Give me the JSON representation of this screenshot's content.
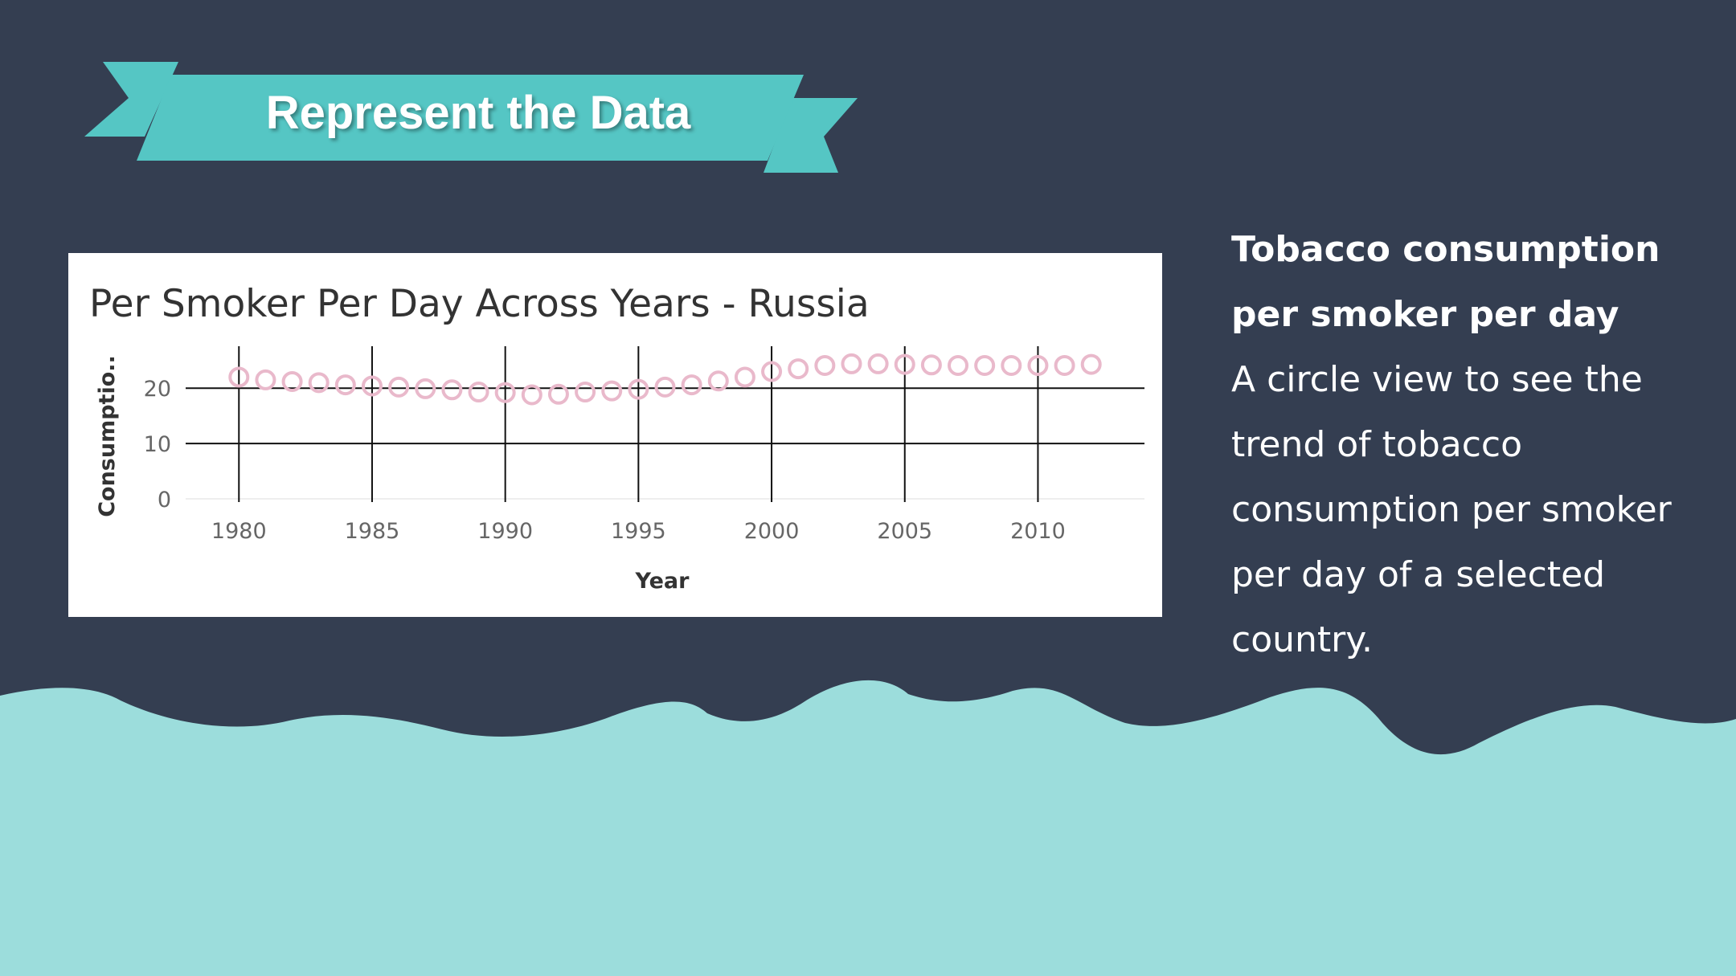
{
  "banner": {
    "title": "Represent the Data"
  },
  "colors": {
    "background": "#343e51",
    "accent": "#55c6c4",
    "wave": "#9cdddc",
    "marker": "#e9b9cb",
    "card": "#ffffff"
  },
  "side_panel": {
    "heading": "Tobacco consumption per smoker per day",
    "body": "A circle view to see the trend of tobacco consumption per smoker per day of a selected country."
  },
  "chart_data": {
    "type": "scatter",
    "title": "Per Smoker Per Day Across Years - Russia",
    "xlabel": "Year",
    "ylabel": "Consumptio..",
    "xlim": [
      1978,
      2014
    ],
    "ylim": [
      0,
      27
    ],
    "xticks": [
      1980,
      1985,
      1990,
      1995,
      2000,
      2005,
      2010
    ],
    "yticks": [
      0,
      10,
      20
    ],
    "grid": true,
    "marker": "open-circle",
    "x": [
      1980,
      1981,
      1982,
      1983,
      1984,
      1985,
      1986,
      1987,
      1988,
      1989,
      1990,
      1991,
      1992,
      1993,
      1994,
      1995,
      1996,
      1997,
      1998,
      1999,
      2000,
      2001,
      2002,
      2003,
      2004,
      2005,
      2006,
      2007,
      2008,
      2009,
      2010,
      2011,
      2012
    ],
    "y": [
      22,
      21.5,
      21.2,
      21,
      20.6,
      20.4,
      20.2,
      19.9,
      19.7,
      19.3,
      19.2,
      18.8,
      18.9,
      19.3,
      19.5,
      19.8,
      20.2,
      20.6,
      21.3,
      22,
      23,
      23.5,
      24.1,
      24.4,
      24.4,
      24.3,
      24.2,
      24.1,
      24.1,
      24.1,
      24.1,
      24.1,
      24.3
    ]
  }
}
